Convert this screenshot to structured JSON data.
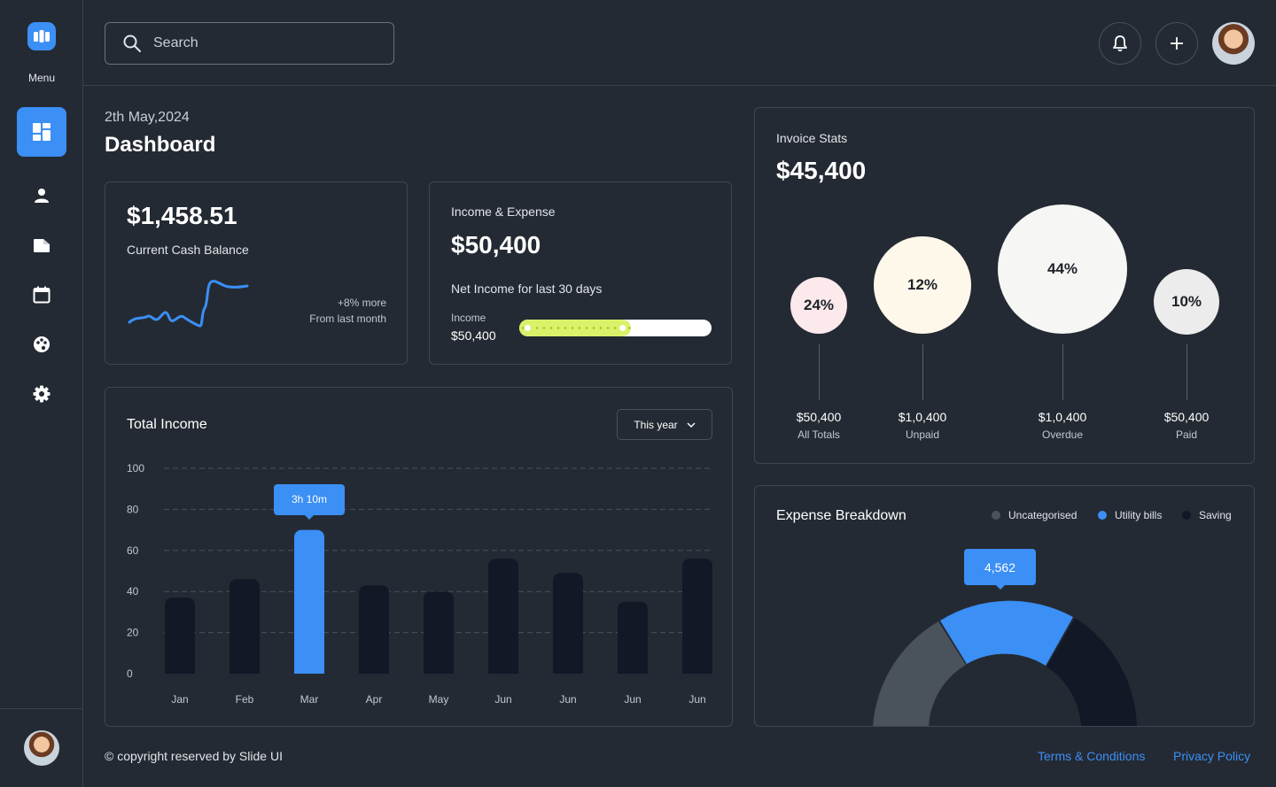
{
  "sidebar": {
    "menu_label": "Menu",
    "items": [
      {
        "icon": "dashboard-icon",
        "active": true
      },
      {
        "icon": "user-icon",
        "active": false
      },
      {
        "icon": "folder-icon",
        "active": false
      },
      {
        "icon": "calendar-icon",
        "active": false
      },
      {
        "icon": "palette-icon",
        "active": false
      },
      {
        "icon": "gear-icon",
        "active": false
      }
    ]
  },
  "header": {
    "search_placeholder": "Search"
  },
  "page": {
    "date": "2th May,2024",
    "title": "Dashboard"
  },
  "cash_card": {
    "amount": "$1,458.51",
    "label": "Current Cash Balance",
    "change": "+8% more",
    "change_period": "From last month"
  },
  "income_expense": {
    "title": "Income & Expense",
    "amount": "$50,400",
    "subtitle": "Net Income for last 30 days",
    "income_label": "Income",
    "income_value": "$50,400",
    "progress_percent": 58
  },
  "total_income": {
    "title": "Total Income",
    "range_label": "This year",
    "tooltip": "3h 10m",
    "highlight_index": 2
  },
  "chart_data": {
    "type": "bar",
    "title": "Total Income",
    "categories": [
      "Jan",
      "Feb",
      "Mar",
      "Apr",
      "May",
      "Jun",
      "Jun",
      "Jun",
      "Jun"
    ],
    "values": [
      37,
      46,
      70,
      43,
      40,
      56,
      49,
      35,
      56
    ],
    "ylim": [
      0,
      100
    ],
    "yticks": [
      "100",
      "80",
      "60",
      "40",
      "20",
      "0"
    ],
    "grid": true,
    "xlabel": "",
    "ylabel": ""
  },
  "invoice_stats": {
    "title": "Invoice Stats",
    "amount": "$45,400",
    "items": [
      {
        "percent": "24%",
        "value": "$50,400",
        "label": "All Totals",
        "color": "#fbe9ec"
      },
      {
        "percent": "12%",
        "value": "$1,0,400",
        "label": "Unpaid",
        "color": "#fdf8ea"
      },
      {
        "percent": "44%",
        "value": "$1,0,400",
        "label": "Overdue",
        "color": "#f6f6f4"
      },
      {
        "percent": "10%",
        "value": "$50,400",
        "label": "Paid",
        "color": "#ececec"
      }
    ]
  },
  "expense_breakdown": {
    "title": "Expense Breakdown",
    "legend": [
      {
        "label": "Uncategorised",
        "color": "#4a525c"
      },
      {
        "label": "Utility bills",
        "color": "#3b8ff5"
      },
      {
        "label": "Saving",
        "color": "#121826"
      }
    ],
    "tooltip": "4,562"
  },
  "footer": {
    "copyright": "© copyright reserved by Slide UI",
    "terms": "Terms & Conditions",
    "privacy": "Privacy Policy"
  },
  "colors": {
    "accent": "#3b8ff5",
    "background": "#242a33",
    "bar": "#121826",
    "progress": "#d9f26a"
  }
}
